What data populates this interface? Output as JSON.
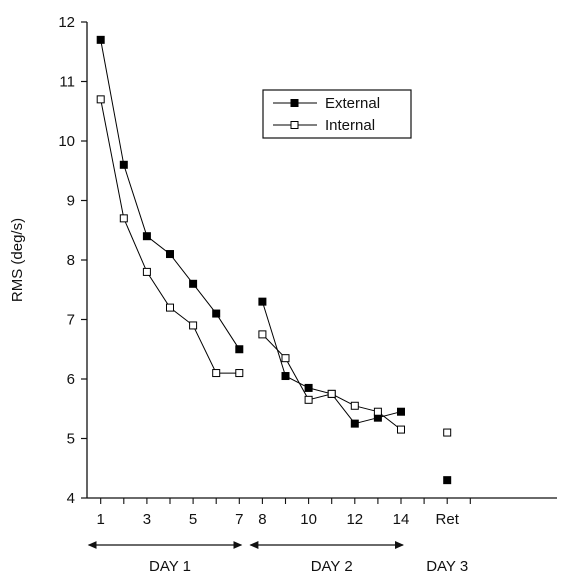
{
  "chart_data": {
    "type": "line",
    "ylabel": "RMS (deg/s)",
    "ylim": [
      4,
      12
    ],
    "y_ticks": [
      "4",
      "5",
      "6",
      "7",
      "8",
      "9",
      "10",
      "11",
      "12"
    ],
    "x_tick_labels": [
      {
        "x": 1,
        "label": "1"
      },
      {
        "x": 3,
        "label": "3"
      },
      {
        "x": 5,
        "label": "5"
      },
      {
        "x": 7,
        "label": "7"
      },
      {
        "x": 8,
        "label": "8"
      },
      {
        "x": 10,
        "label": "10"
      },
      {
        "x": 12,
        "label": "12"
      },
      {
        "x": 14,
        "label": "14"
      },
      {
        "x": 16,
        "label": "Ret"
      }
    ],
    "legend": "top-center",
    "grid": false,
    "series": [
      {
        "name": "External",
        "marker": "filled-square",
        "color": "#000000",
        "segments": [
          [
            [
              1,
              11.7
            ],
            [
              2,
              9.6
            ],
            [
              3,
              8.4
            ],
            [
              4,
              8.1
            ],
            [
              5,
              7.6
            ],
            [
              6,
              7.1
            ],
            [
              7,
              6.5
            ]
          ],
          [
            [
              8,
              7.3
            ],
            [
              9,
              6.05
            ],
            [
              10,
              5.85
            ],
            [
              11,
              5.75
            ],
            [
              12,
              5.25
            ],
            [
              13,
              5.35
            ],
            [
              14,
              5.45
            ]
          ],
          [
            [
              16,
              4.3
            ]
          ]
        ]
      },
      {
        "name": "Internal",
        "marker": "open-square",
        "color": "#000000",
        "segments": [
          [
            [
              1,
              10.7
            ],
            [
              2,
              8.7
            ],
            [
              3,
              7.8
            ],
            [
              4,
              7.2
            ],
            [
              5,
              6.9
            ],
            [
              6,
              6.1
            ],
            [
              7,
              6.1
            ]
          ],
          [
            [
              8,
              6.75
            ],
            [
              9,
              6.35
            ],
            [
              10,
              5.65
            ],
            [
              11,
              5.75
            ],
            [
              12,
              5.55
            ],
            [
              13,
              5.45
            ],
            [
              14,
              5.15
            ]
          ],
          [
            [
              16,
              5.1
            ]
          ]
        ]
      }
    ],
    "day_labels": [
      {
        "label": "DAY 1",
        "from": 1,
        "to": 7,
        "arrow": true
      },
      {
        "label": "DAY 2",
        "from": 8,
        "to": 14,
        "arrow": true
      },
      {
        "label": "DAY 3",
        "at": 16,
        "arrow": false
      }
    ]
  }
}
